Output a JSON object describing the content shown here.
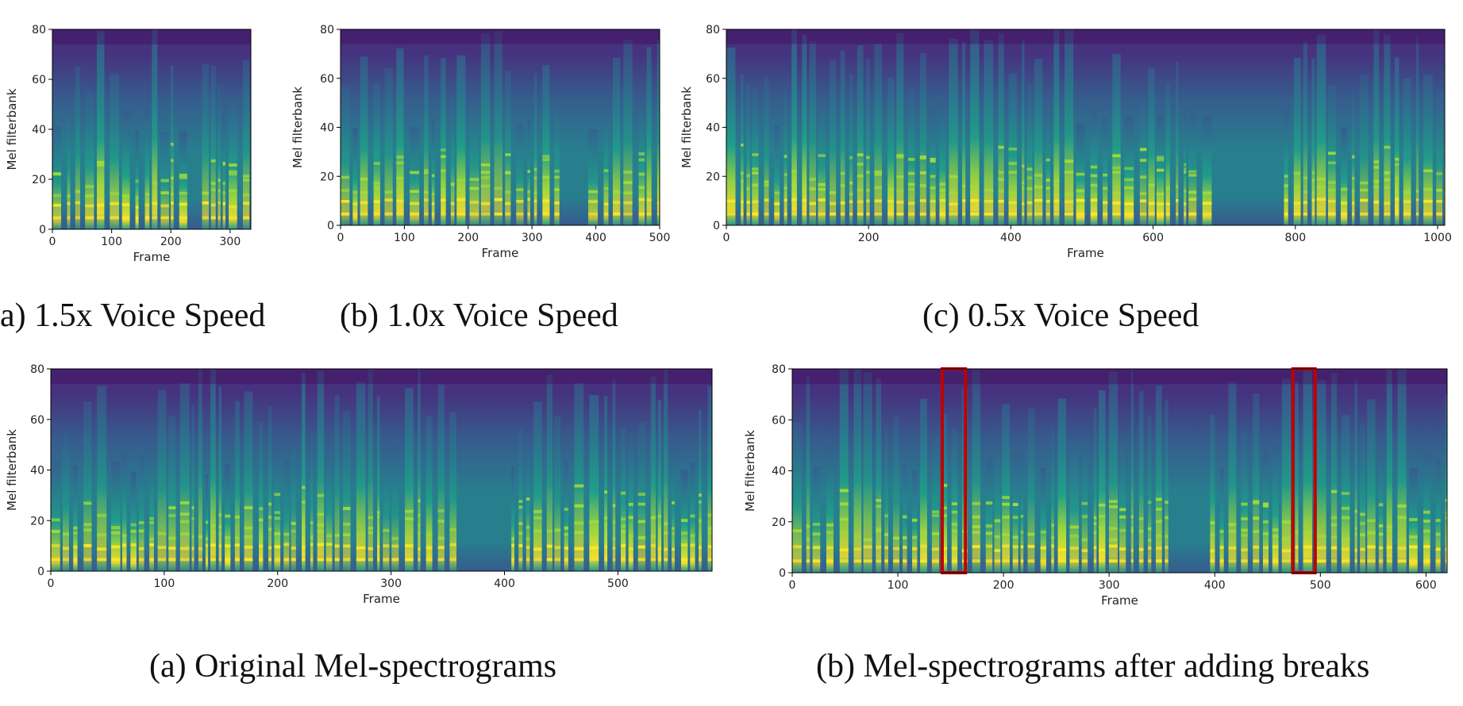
{
  "figure": {
    "captions": [
      "a) 1.5x Voice Speed",
      "(b) 1.0x Voice Speed",
      "(c) 0.5x Voice Speed",
      "(a) Original Mel-spectrograms",
      "(b) Mel-spectrograms after adding breaks"
    ]
  },
  "colors": {
    "viridis": [
      "#440154",
      "#46327e",
      "#365c8d",
      "#277f8e",
      "#1fa187",
      "#4ac16d",
      "#a0da39",
      "#fde725"
    ],
    "highlight": "#c00000",
    "axis": "#000000",
    "caption": "#111111"
  },
  "chart_data": [
    {
      "id": "speed-1_5x",
      "type": "heatmap",
      "xlabel": "Frame",
      "ylabel": "Mel filterbank",
      "xlim": [
        0,
        335
      ],
      "ylim": [
        0,
        80
      ],
      "xticks": [
        0,
        100,
        200,
        300
      ],
      "yticks": [
        0,
        20,
        40,
        60,
        80
      ],
      "silence_regions": [
        [
          225,
          255
        ]
      ],
      "highlights": [],
      "caption": "a) 1.5x Voice Speed"
    },
    {
      "id": "speed-1_0x",
      "type": "heatmap",
      "xlabel": "Frame",
      "ylabel": "Mel filterbank",
      "xlim": [
        0,
        500
      ],
      "ylim": [
        0,
        80
      ],
      "xticks": [
        0,
        100,
        200,
        300,
        400,
        500
      ],
      "yticks": [
        0,
        20,
        40,
        60,
        80
      ],
      "silence_regions": [
        [
          340,
          385
        ]
      ],
      "highlights": [],
      "caption": "(b) 1.0x Voice Speed"
    },
    {
      "id": "speed-0_5x",
      "type": "heatmap",
      "xlabel": "Frame",
      "ylabel": "Mel filterbank",
      "xlim": [
        0,
        1010
      ],
      "ylim": [
        0,
        80
      ],
      "xticks": [
        0,
        200,
        400,
        600,
        800,
        1000
      ],
      "yticks": [
        0,
        20,
        40,
        60,
        80
      ],
      "silence_regions": [
        [
          690,
          780
        ]
      ],
      "highlights": [],
      "caption": "(c) 0.5x Voice Speed"
    },
    {
      "id": "original",
      "type": "heatmap",
      "xlabel": "Frame",
      "ylabel": "Mel filterbank",
      "xlim": [
        0,
        583
      ],
      "ylim": [
        0,
        80
      ],
      "xticks": [
        0,
        100,
        200,
        300,
        400,
        500
      ],
      "yticks": [
        0,
        20,
        40,
        60,
        80
      ],
      "silence_regions": [
        [
          355,
          405
        ]
      ],
      "highlights": [],
      "caption": "(a) Original Mel-spectrograms"
    },
    {
      "id": "with-breaks",
      "type": "heatmap",
      "xlabel": "Frame",
      "ylabel": "Mel filterbank",
      "xlim": [
        0,
        620
      ],
      "ylim": [
        0,
        80
      ],
      "xticks": [
        0,
        100,
        200,
        300,
        400,
        500,
        600
      ],
      "yticks": [
        0,
        20,
        40,
        60,
        80
      ],
      "silence_regions": [
        [
          355,
          395
        ]
      ],
      "highlights": [
        [
          142,
          164
        ],
        [
          474,
          495
        ]
      ],
      "caption": "(b) Mel-spectrograms after adding breaks"
    }
  ]
}
